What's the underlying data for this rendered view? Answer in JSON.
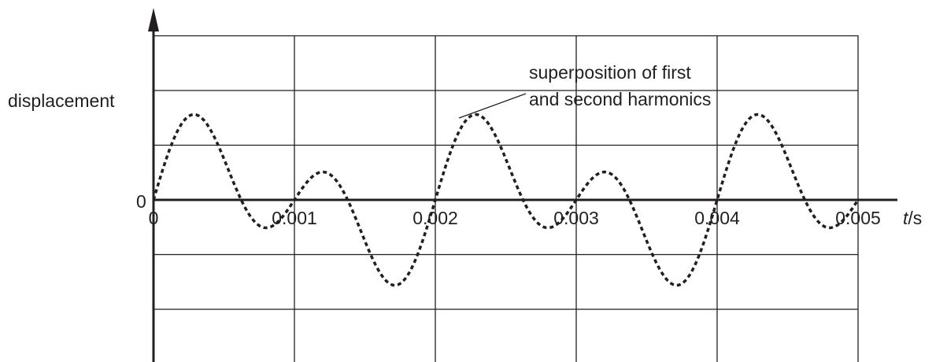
{
  "chart_data": {
    "type": "line",
    "ylabel": "displacement",
    "y_zero_label": "0",
    "xlabel_var": "t",
    "xlabel_unit": "s",
    "x_ticks": [
      {
        "value": 0,
        "label": "0"
      },
      {
        "value": 0.001,
        "label": "0.001"
      },
      {
        "value": 0.002,
        "label": "0.002"
      },
      {
        "value": 0.003,
        "label": "0.003"
      },
      {
        "value": 0.004,
        "label": "0.004"
      },
      {
        "value": 0.005,
        "label": "0.005"
      }
    ],
    "xlim": [
      0,
      0.005
    ],
    "ylim": [
      -2.5,
      2.5
    ],
    "grid": true,
    "series": [
      {
        "name": "superposition of first and second harmonics",
        "style": "dashed",
        "color": "#231f20",
        "formula": "0.75*sin(2*pi*500*t) + 1*sin(2*pi*1000*t)",
        "period": 0.002,
        "x": [
          0,
          0.00025,
          0.0003,
          0.0005,
          0.00075,
          0.0009,
          0.001,
          0.00115,
          0.00125,
          0.0015,
          0.0017,
          0.00175,
          0.002,
          0.00225,
          0.0023,
          0.0025,
          0.00275,
          0.0029,
          0.003,
          0.00315,
          0.00325,
          0.0035,
          0.0037,
          0.00375,
          0.004,
          0.00425,
          0.0043,
          0.0045,
          0.00475,
          0.0049,
          0.005
        ],
        "y": [
          0,
          1.69,
          1.75,
          0.75,
          -0.18,
          -0.37,
          0,
          0.13,
          0.06,
          -0.75,
          -1.66,
          -1.53,
          0,
          1.69,
          1.75,
          0.75,
          -0.18,
          -0.37,
          0,
          0.13,
          0.06,
          -0.75,
          -1.66,
          -1.53,
          0,
          1.69,
          1.75,
          0.75,
          -0.18,
          -0.37,
          0
        ]
      }
    ],
    "annotation": {
      "lines": [
        "superposition of first",
        "and second harmonics"
      ]
    }
  }
}
